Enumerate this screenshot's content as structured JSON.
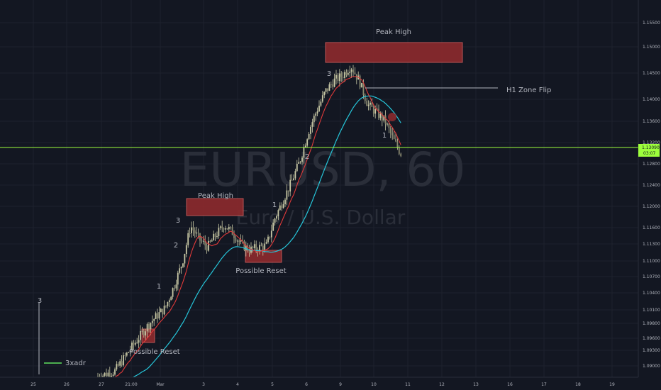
{
  "chart_data": {
    "type": "candlestick",
    "watermark": {
      "symbol": "EURUSD, 60",
      "description": "Euro / U.S. Dollar"
    },
    "price_axis": {
      "ticks": [
        "1.15500",
        "1.15000",
        "1.14500",
        "1.14000",
        "1.13600",
        "1.13200",
        "1.12800",
        "1.12400",
        "1.12000",
        "1.11600",
        "1.11300",
        "1.11000",
        "1.10700",
        "1.10400",
        "1.10100",
        "1.09800",
        "1.09600",
        "1.09300",
        "1.09000"
      ],
      "current_price": "1.13090",
      "countdown": "03:07"
    },
    "time_axis": {
      "ticks": [
        "25",
        "26",
        "27",
        "21:00",
        "Mar",
        "3",
        "4",
        "5",
        "6",
        "9",
        "10",
        "11",
        "12",
        "13",
        "16",
        "17",
        "18",
        "19"
      ]
    },
    "legend": {
      "series_name": "3xadr"
    },
    "annotations": {
      "peak_high_1": "Peak High",
      "peak_high_2": "Peak High",
      "possible_reset_1": "Possible Reset",
      "possible_reset_2": "Possible Reset",
      "h1_zone_flip": "H1 Zone Flip",
      "wave_labels": [
        "3",
        "2",
        "1",
        "3",
        "2",
        "1",
        "3",
        "1"
      ]
    },
    "colors": {
      "background": "#131722",
      "candle": "#c9c9a6",
      "fast_ma": "#e03a3a",
      "slow_ma": "#26c6da",
      "current_price_line": "#9dff3c",
      "zone_fill": "#8b2a2d",
      "zone_border": "#c85a5a"
    },
    "price_path": [
      [
        0,
        1.088
      ],
      [
        2,
        1.089
      ],
      [
        4,
        1.0935
      ],
      [
        6,
        1.0978
      ],
      [
        7,
        1.0995
      ],
      [
        8,
        1.101
      ],
      [
        9,
        1.105
      ],
      [
        10,
        1.1095
      ],
      [
        11,
        1.1165
      ],
      [
        12,
        1.114
      ],
      [
        13,
        1.1125
      ],
      [
        14,
        1.1148
      ],
      [
        15,
        1.1167
      ],
      [
        16,
        1.1152
      ],
      [
        17,
        1.113
      ],
      [
        18,
        1.112
      ],
      [
        19,
        1.1124
      ],
      [
        20,
        1.1128
      ],
      [
        21,
        1.118
      ],
      [
        22,
        1.1215
      ],
      [
        23,
        1.125
      ],
      [
        24,
        1.129
      ],
      [
        25,
        1.1345
      ],
      [
        26,
        1.1385
      ],
      [
        27,
        1.142
      ],
      [
        28,
        1.144
      ],
      [
        29,
        1.145
      ],
      [
        30,
        1.1468
      ],
      [
        31,
        1.144
      ],
      [
        32,
        1.1395
      ],
      [
        33,
        1.138
      ],
      [
        34,
        1.1365
      ],
      [
        35,
        1.133
      ],
      [
        36,
        1.13
      ]
    ]
  }
}
